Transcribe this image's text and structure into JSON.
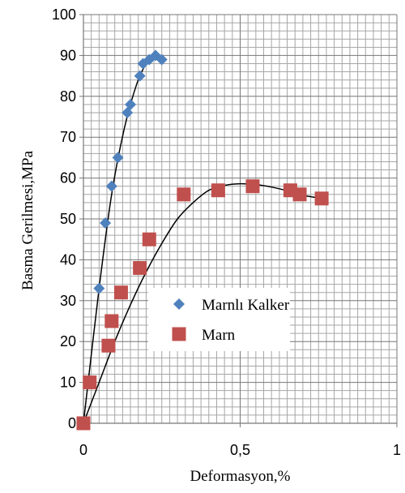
{
  "chart_data": {
    "type": "scatter",
    "title": "",
    "xlabel": "Deformasyon,%",
    "ylabel": "Basma Gerilmesi,MPa",
    "xlim": [
      0,
      1
    ],
    "ylim": [
      0,
      100
    ],
    "x_ticks": [
      "0",
      "0,5",
      "1"
    ],
    "y_ticks": [
      "0",
      "10",
      "20",
      "30",
      "40",
      "50",
      "60",
      "70",
      "80",
      "90",
      "100"
    ],
    "grid": true,
    "legend_position": "lower-right",
    "series": [
      {
        "name": "Marnlı Kalker",
        "marker": "diamond",
        "color": "#4f81bd",
        "x": [
          0,
          0.05,
          0.07,
          0.09,
          0.11,
          0.14,
          0.15,
          0.18,
          0.19,
          0.21,
          0.23,
          0.25
        ],
        "y": [
          0,
          33,
          49,
          58,
          65,
          76,
          78,
          85,
          88,
          89,
          90,
          89
        ],
        "trendline": {
          "x": [
            0,
            0.05,
            0.09,
            0.13,
            0.17,
            0.2,
            0.22,
            0.24,
            0.26
          ],
          "y": [
            0,
            33,
            56,
            72,
            83,
            88,
            90,
            90,
            89
          ]
        }
      },
      {
        "name": "Marn",
        "marker": "square",
        "color": "#c0504d",
        "x": [
          0,
          0.02,
          0.08,
          0.09,
          0.12,
          0.18,
          0.21,
          0.32,
          0.43,
          0.54,
          0.66,
          0.69,
          0.76
        ],
        "y": [
          0,
          10,
          19,
          25,
          32,
          38,
          45,
          56,
          57,
          58,
          57,
          56,
          55
        ],
        "trendline": {
          "x": [
            0,
            0.05,
            0.1,
            0.15,
            0.2,
            0.25,
            0.3,
            0.35,
            0.4,
            0.45,
            0.5,
            0.55,
            0.6,
            0.65,
            0.7,
            0.76
          ],
          "y": [
            0,
            10,
            20,
            29,
            37,
            44,
            50,
            54,
            57,
            58.2,
            58.6,
            58.4,
            57.8,
            56.9,
            55.8,
            55
          ]
        }
      }
    ]
  }
}
